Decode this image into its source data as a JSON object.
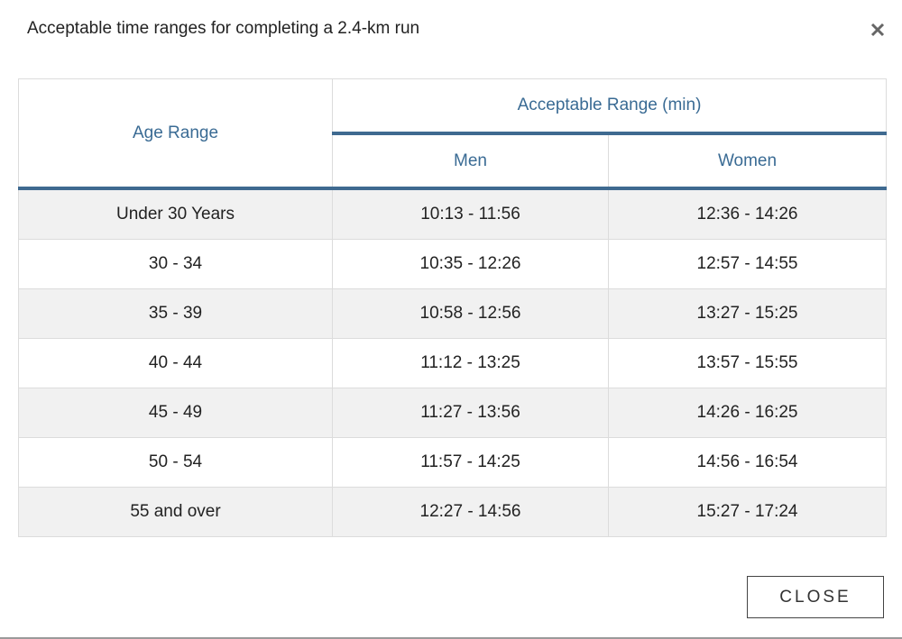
{
  "dialog": {
    "title": "Acceptable time ranges for completing a 2.4-km run",
    "button": "CLOSE"
  },
  "table": {
    "age_header": "Age Range",
    "range_header": "Acceptable Range (min)",
    "sub_headers": [
      "Men",
      "Women"
    ],
    "rows": [
      [
        "Under 30 Years",
        "10:13 - 11:56",
        "12:36 - 14:26"
      ],
      [
        "30 - 34",
        "10:35 - 12:26",
        "12:57 - 14:55"
      ],
      [
        "35 - 39",
        "10:58 - 12:56",
        "13:27 - 15:25"
      ],
      [
        "40 - 44",
        "11:12 - 13:25",
        "13:57 - 15:55"
      ],
      [
        "45 - 49",
        "11:27 - 13:56",
        "14:26 - 16:25"
      ],
      [
        "50 - 54",
        "11:57 - 14:25",
        "14:56 - 16:54"
      ],
      [
        "55 and over",
        "12:27 - 14:56",
        "15:27 - 17:24"
      ]
    ]
  }
}
